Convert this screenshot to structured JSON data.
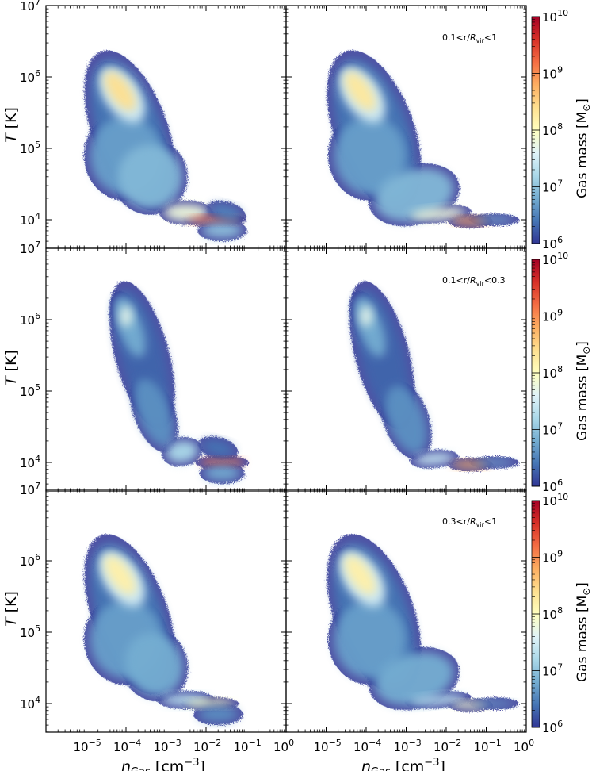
{
  "chart_data": {
    "type": "heatmap",
    "description_grid": "3 rows x 2 columns of 2D gas phase-space histograms",
    "x_axis": {
      "label": "n_Gas [cm^-3]",
      "label_main": "n",
      "label_sub": "Gas",
      "label_unit": " [cm",
      "label_unit_exp": "−3",
      "label_close": "]",
      "scale": "log",
      "lim_exp": [
        -6,
        0
      ],
      "ticks": [
        {
          "base": "10",
          "exp": "−5",
          "value": -5
        },
        {
          "base": "10",
          "exp": "−4",
          "value": -4
        },
        {
          "base": "10",
          "exp": "−3",
          "value": -3
        },
        {
          "base": "10",
          "exp": "−2",
          "value": -2
        },
        {
          "base": "10",
          "exp": "−1",
          "value": -1
        },
        {
          "base": "10",
          "exp": "0",
          "value": 0
        }
      ]
    },
    "y_axis": {
      "label": "T [K]",
      "label_main": "T",
      "label_unit": " [K]",
      "scale": "log",
      "lim_exp": [
        3.6,
        7.0
      ],
      "ticks": [
        {
          "base": "10",
          "exp": "4",
          "value": 4
        },
        {
          "base": "10",
          "exp": "5",
          "value": 5
        },
        {
          "base": "10",
          "exp": "6",
          "value": 6
        },
        {
          "base": "10",
          "exp": "7",
          "value": 7
        }
      ]
    },
    "colorbar": {
      "label": "Gas mass [M⊙]",
      "label_main": "Gas mass [M",
      "label_sub": "⊙",
      "label_close": "]",
      "scale": "log",
      "lim_exp": [
        6,
        10
      ],
      "ticks": [
        {
          "base": "10",
          "exp": "6",
          "value": 6
        },
        {
          "base": "10",
          "exp": "7",
          "value": 7
        },
        {
          "base": "10",
          "exp": "8",
          "value": 8
        },
        {
          "base": "10",
          "exp": "9",
          "value": 9
        },
        {
          "base": "10",
          "exp": "10",
          "value": 10
        }
      ],
      "colors": [
        "#313695",
        "#4575b4",
        "#74add1",
        "#abd9e9",
        "#e0f3f8",
        "#ffffbf",
        "#fee090",
        "#fdae61",
        "#f46d43",
        "#d73027",
        "#a50026"
      ]
    },
    "rows": [
      {
        "annotation": {
          "pre": "0.1<r/",
          "R": "R",
          "sub": "vir",
          "post": "<1"
        },
        "panels": [
          {
            "blobs": [
              {
                "x": -3.9,
                "y": 5.25,
                "sx": 0.8,
                "sy": 1.05,
                "rot": -20,
                "c": 6.4
              },
              {
                "x": -4.0,
                "y": 4.9,
                "sx": 0.9,
                "sy": 0.55,
                "rot": 0,
                "c": 6.7
              },
              {
                "x": -4.1,
                "y": 5.75,
                "sx": 0.45,
                "sy": 0.45,
                "rot": -35,
                "c": 7.5
              },
              {
                "x": -4.15,
                "y": 5.8,
                "sx": 0.26,
                "sy": 0.32,
                "rot": -35,
                "c": 8.4
              },
              {
                "x": -3.4,
                "y": 4.6,
                "sx": 0.8,
                "sy": 0.45,
                "rot": -25,
                "c": 6.9
              },
              {
                "x": -2.5,
                "y": 4.1,
                "sx": 0.55,
                "sy": 0.12,
                "rot": 0,
                "c": 7.8
              },
              {
                "x": -1.8,
                "y": 4.0,
                "sx": 0.65,
                "sy": 0.05,
                "rot": 0,
                "c": 9.2
              },
              {
                "x": -1.6,
                "y": 3.85,
                "sx": 0.5,
                "sy": 0.1,
                "rot": 0,
                "c": 7.0
              },
              {
                "x": -1.5,
                "y": 4.1,
                "sx": 0.4,
                "sy": 0.1,
                "rot": 15,
                "c": 6.5
              }
            ]
          },
          {
            "blobs": [
              {
                "x": -3.8,
                "y": 5.25,
                "sx": 0.85,
                "sy": 1.05,
                "rot": -20,
                "c": 6.4
              },
              {
                "x": -3.9,
                "y": 4.9,
                "sx": 0.9,
                "sy": 0.55,
                "rot": 0,
                "c": 6.7
              },
              {
                "x": -4.1,
                "y": 5.75,
                "sx": 0.45,
                "sy": 0.45,
                "rot": -35,
                "c": 7.5
              },
              {
                "x": -4.15,
                "y": 5.8,
                "sx": 0.26,
                "sy": 0.32,
                "rot": -35,
                "c": 8.3
              },
              {
                "x": -2.8,
                "y": 4.35,
                "sx": 1.0,
                "sy": 0.35,
                "rot": -15,
                "c": 6.9
              },
              {
                "x": -2.2,
                "y": 4.08,
                "sx": 0.7,
                "sy": 0.08,
                "rot": -5,
                "c": 7.8
              },
              {
                "x": -1.4,
                "y": 3.98,
                "sx": 0.45,
                "sy": 0.05,
                "rot": 0,
                "c": 8.9
              },
              {
                "x": -0.8,
                "y": 4.0,
                "sx": 0.5,
                "sy": 0.04,
                "rot": 0,
                "c": 6.8
              }
            ]
          }
        ]
      },
      {
        "annotation": {
          "pre": "0.1<r/",
          "R": "R",
          "sub": "vir",
          "post": "<0.3"
        },
        "panels": [
          {
            "blobs": [
              {
                "x": -3.6,
                "y": 5.5,
                "sx": 0.55,
                "sy": 0.95,
                "rot": -15,
                "c": 6.3
              },
              {
                "x": -3.9,
                "y": 5.9,
                "sx": 0.3,
                "sy": 0.45,
                "rot": -20,
                "c": 6.8
              },
              {
                "x": -4.0,
                "y": 6.05,
                "sx": 0.15,
                "sy": 0.15,
                "rot": 0,
                "c": 7.7
              },
              {
                "x": -3.3,
                "y": 4.7,
                "sx": 0.4,
                "sy": 0.5,
                "rot": -20,
                "c": 6.6
              },
              {
                "x": -2.6,
                "y": 4.15,
                "sx": 0.4,
                "sy": 0.15,
                "rot": -10,
                "c": 7.2
              },
              {
                "x": -1.6,
                "y": 4.0,
                "sx": 0.55,
                "sy": 0.05,
                "rot": 0,
                "c": 9.2
              },
              {
                "x": -1.6,
                "y": 3.85,
                "sx": 0.45,
                "sy": 0.1,
                "rot": 0,
                "c": 6.8
              },
              {
                "x": -1.7,
                "y": 4.2,
                "sx": 0.4,
                "sy": 0.1,
                "rot": 15,
                "c": 6.4
              }
            ]
          },
          {
            "blobs": [
              {
                "x": -3.6,
                "y": 5.5,
                "sx": 0.55,
                "sy": 0.95,
                "rot": -15,
                "c": 6.3
              },
              {
                "x": -3.9,
                "y": 5.9,
                "sx": 0.3,
                "sy": 0.45,
                "rot": -20,
                "c": 6.8
              },
              {
                "x": -4.0,
                "y": 6.05,
                "sx": 0.15,
                "sy": 0.15,
                "rot": 0,
                "c": 7.7
              },
              {
                "x": -3.0,
                "y": 4.6,
                "sx": 0.45,
                "sy": 0.5,
                "rot": -20,
                "c": 6.6
              },
              {
                "x": -2.3,
                "y": 4.05,
                "sx": 0.5,
                "sy": 0.08,
                "rot": -5,
                "c": 7.4
              },
              {
                "x": -1.4,
                "y": 3.97,
                "sx": 0.45,
                "sy": 0.05,
                "rot": 0,
                "c": 8.8
              },
              {
                "x": -0.8,
                "y": 4.0,
                "sx": 0.5,
                "sy": 0.04,
                "rot": 0,
                "c": 6.8
              }
            ]
          }
        ]
      },
      {
        "annotation": {
          "pre": "0.3<r/",
          "R": "R",
          "sub": "vir",
          "post": "<1"
        },
        "panels": [
          {
            "blobs": [
              {
                "x": -3.9,
                "y": 5.25,
                "sx": 0.8,
                "sy": 1.05,
                "rot": -20,
                "c": 6.4
              },
              {
                "x": -4.0,
                "y": 4.9,
                "sx": 0.9,
                "sy": 0.55,
                "rot": 0,
                "c": 6.7
              },
              {
                "x": -4.1,
                "y": 5.75,
                "sx": 0.45,
                "sy": 0.45,
                "rot": -35,
                "c": 7.5
              },
              {
                "x": -4.15,
                "y": 5.8,
                "sx": 0.26,
                "sy": 0.32,
                "rot": -35,
                "c": 8.2
              },
              {
                "x": -3.3,
                "y": 4.55,
                "sx": 0.7,
                "sy": 0.45,
                "rot": -25,
                "c": 6.8
              },
              {
                "x": -2.5,
                "y": 4.05,
                "sx": 0.6,
                "sy": 0.08,
                "rot": 0,
                "c": 7.3
              },
              {
                "x": -1.9,
                "y": 4.0,
                "sx": 0.6,
                "sy": 0.05,
                "rot": 0,
                "c": 8.0
              },
              {
                "x": -1.7,
                "y": 3.85,
                "sx": 0.5,
                "sy": 0.1,
                "rot": 0,
                "c": 6.6
              }
            ]
          },
          {
            "blobs": [
              {
                "x": -3.8,
                "y": 5.25,
                "sx": 0.85,
                "sy": 1.05,
                "rot": -20,
                "c": 6.4
              },
              {
                "x": -3.9,
                "y": 4.9,
                "sx": 0.9,
                "sy": 0.55,
                "rot": 0,
                "c": 6.7
              },
              {
                "x": -4.1,
                "y": 5.75,
                "sx": 0.45,
                "sy": 0.45,
                "rot": -35,
                "c": 7.5
              },
              {
                "x": -4.15,
                "y": 5.8,
                "sx": 0.26,
                "sy": 0.32,
                "rot": -35,
                "c": 8.2
              },
              {
                "x": -2.8,
                "y": 4.35,
                "sx": 1.0,
                "sy": 0.35,
                "rot": -15,
                "c": 6.8
              },
              {
                "x": -2.2,
                "y": 4.05,
                "sx": 0.7,
                "sy": 0.07,
                "rot": -5,
                "c": 7.3
              },
              {
                "x": -1.4,
                "y": 3.98,
                "sx": 0.45,
                "sy": 0.05,
                "rot": 0,
                "c": 7.9
              },
              {
                "x": -0.8,
                "y": 4.0,
                "sx": 0.5,
                "sy": 0.04,
                "rot": 0,
                "c": 6.7
              }
            ]
          }
        ]
      }
    ]
  }
}
